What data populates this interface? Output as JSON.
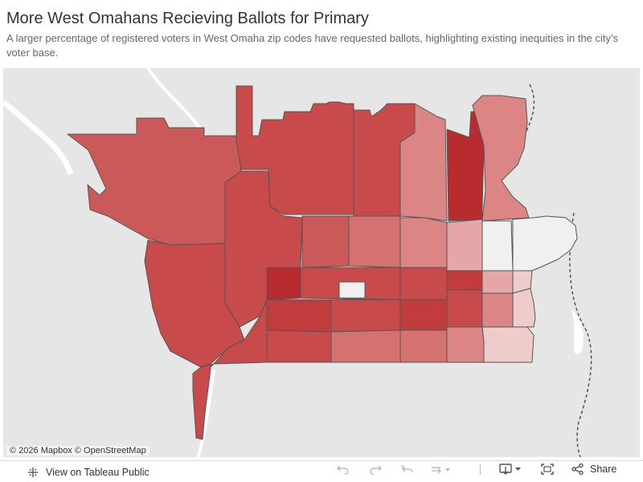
{
  "header": {
    "title": "More West Omahans Recieving Ballots for Primary",
    "subtitle": "A larger percentage of registered voters in West Omaha zip codes have requested ballots, highlighting existing inequities in the city’s voter base."
  },
  "map": {
    "attribution": "© 2026 Mapbox  © OpenStreetMap",
    "fill_colors": {
      "level_1": "#f0f0f0",
      "level_2": "#efcccc",
      "level_3": "#e4a6a6",
      "level_4": "#db8585",
      "level_5": "#d47272",
      "level_6": "#cc5959",
      "level_7": "#c84a4a",
      "level_8": "#c13d3d",
      "level_9": "#b82b2f"
    },
    "background_colors": {
      "land": "#e6e6e6",
      "water": "#ffffff",
      "boundary": "#555555"
    }
  },
  "toolbar": {
    "view_label": "View on Tableau Public",
    "share_label": "Share",
    "icons": [
      "tableau-logo-icon",
      "undo-icon",
      "redo-icon",
      "revert-icon",
      "refresh-icon",
      "download-icon",
      "fullscreen-icon",
      "share-icon"
    ]
  }
}
